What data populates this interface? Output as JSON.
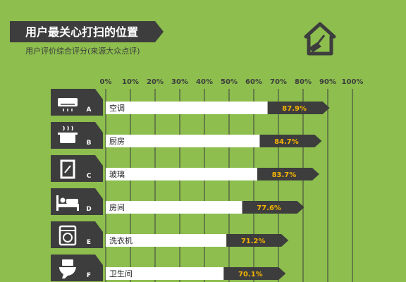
{
  "colors": {
    "background": "#8dbe4e",
    "dark": "#3d3d3d",
    "bar": "#ffffff",
    "value_text": "#f4b400",
    "title_text": "#ffffff"
  },
  "chart_data": {
    "type": "bar",
    "title": "用户最关心打扫的位置",
    "subtitle": "用户评价综合评分(来源大众点评)",
    "orientation": "horizontal",
    "xlim": [
      0,
      100
    ],
    "x_ticks": [
      "0%",
      "10%",
      "20%",
      "30%",
      "40%",
      "50%",
      "60%",
      "70%",
      "80%",
      "90%",
      "100%"
    ],
    "grid": "vertical",
    "categories": [
      "空调",
      "厨房",
      "玻璃",
      "房间",
      "洗衣机",
      "卫生间"
    ],
    "letters": [
      "A",
      "B",
      "C",
      "D",
      "E",
      "F"
    ],
    "icons": [
      "air-conditioner-icon",
      "cooking-pot-icon",
      "window-icon",
      "bed-icon",
      "washing-machine-icon",
      "toilet-icon"
    ],
    "values": [
      87.9,
      84.7,
      83.7,
      77.6,
      71.2,
      70.1
    ],
    "value_labels": [
      "87.9%",
      "84.7%",
      "83.7%",
      "77.6%",
      "71.2%",
      "70.1%"
    ]
  },
  "logo": {
    "icon": "house-broom-icon"
  }
}
